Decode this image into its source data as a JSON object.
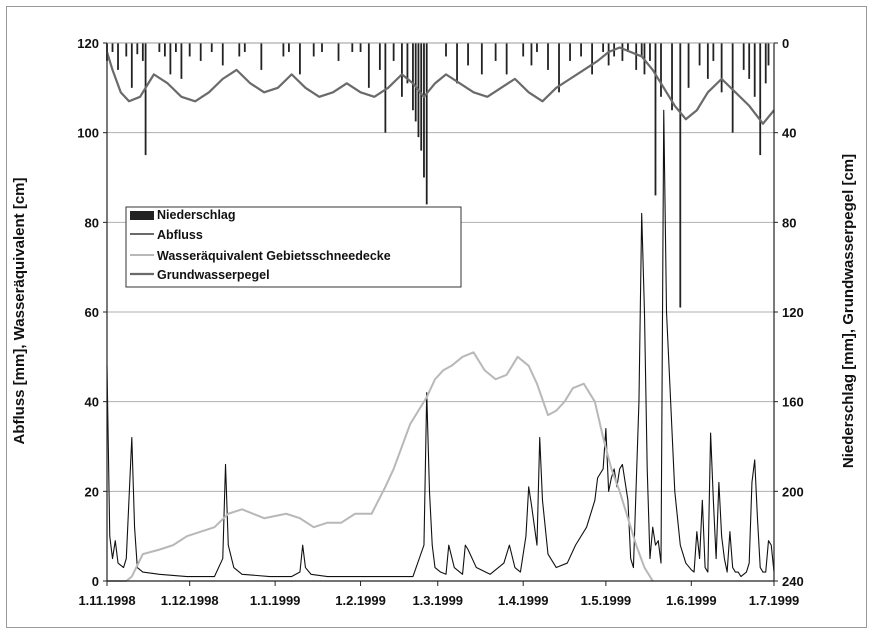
{
  "chart_data": {
    "type": "line",
    "xlabel": "",
    "ylabel_left": "Abfluss [mm], Wasseräquivalent [cm]",
    "ylabel_right": "Niederschlag [mm], Grundwasserpegel [cm]",
    "x_ticks": [
      "1.11.1998",
      "1.12.1998",
      "1.1.1999",
      "1.2.1999",
      "1.3.1999",
      "1.4.1999",
      "1.5.1999",
      "1.6.1999",
      "1.7.1999"
    ],
    "x_start": "1998-11-01",
    "x_end": "1999-07-01",
    "ylim_left": [
      0,
      120
    ],
    "yticks_left": [
      "0",
      "20",
      "40",
      "60",
      "80",
      "100",
      "120"
    ],
    "ylim_right": [
      0,
      240
    ],
    "right_axis_inverted": true,
    "yticks_right": [
      "0",
      "40",
      "80",
      "120",
      "160",
      "200",
      "240"
    ],
    "grid": "horizontal",
    "legend_placement": "upper-left",
    "legend": [
      {
        "label": "Niederschlag",
        "style": "bar",
        "color": "#222222"
      },
      {
        "label": "Abfluss",
        "style": "line",
        "color": "#111111"
      },
      {
        "label": "Wasseräquivalent Gebietsschneedecke",
        "style": "line",
        "color": "#b8b8b8"
      },
      {
        "label": "Grundwasserpegel",
        "style": "line",
        "color": "#6a6a6a"
      }
    ],
    "series": [
      {
        "name": "Niederschlag",
        "axis": "right",
        "kind": "bar",
        "color": "#222222",
        "x": [
          "1998-11-01",
          "1998-11-03",
          "1998-11-05",
          "1998-11-08",
          "1998-11-10",
          "1998-11-12",
          "1998-11-14",
          "1998-11-15",
          "1998-11-20",
          "1998-11-22",
          "1998-11-24",
          "1998-11-26",
          "1998-11-28",
          "1998-12-01",
          "1998-12-05",
          "1998-12-09",
          "1998-12-13",
          "1998-12-19",
          "1998-12-21",
          "1998-12-27",
          "1999-01-04",
          "1999-01-06",
          "1999-01-10",
          "1999-01-15",
          "1999-01-18",
          "1999-01-24",
          "1999-01-29",
          "1999-02-01",
          "1999-02-04",
          "1999-02-08",
          "1999-02-10",
          "1999-02-13",
          "1999-02-16",
          "1999-02-18",
          "1999-02-20",
          "1999-02-21",
          "1999-02-22",
          "1999-02-23",
          "1999-02-24",
          "1999-02-25",
          "1999-03-04",
          "1999-03-08",
          "1999-03-12",
          "1999-03-17",
          "1999-03-22",
          "1999-03-26",
          "1999-04-01",
          "1999-04-04",
          "1999-04-06",
          "1999-04-10",
          "1999-04-14",
          "1999-04-18",
          "1999-04-22",
          "1999-04-26",
          "1999-04-30",
          "1999-05-02",
          "1999-05-04",
          "1999-05-07",
          "1999-05-09",
          "1999-05-12",
          "1999-05-14",
          "1999-05-15",
          "1999-05-17",
          "1999-05-19",
          "1999-05-21",
          "1999-05-25",
          "1999-05-28",
          "1999-05-31",
          "1999-06-04",
          "1999-06-07",
          "1999-06-09",
          "1999-06-12",
          "1999-06-16",
          "1999-06-20",
          "1999-06-22",
          "1999-06-24",
          "1999-06-26",
          "1999-06-28",
          "1999-06-29"
        ],
        "values": [
          8,
          4,
          12,
          6,
          20,
          5,
          8,
          50,
          4,
          6,
          14,
          4,
          16,
          6,
          8,
          4,
          10,
          6,
          4,
          12,
          6,
          4,
          14,
          6,
          4,
          8,
          4,
          4,
          20,
          12,
          40,
          8,
          24,
          18,
          30,
          35,
          42,
          48,
          60,
          72,
          6,
          18,
          10,
          14,
          8,
          14,
          6,
          10,
          4,
          12,
          22,
          8,
          6,
          14,
          4,
          10,
          6,
          8,
          4,
          12,
          6,
          14,
          8,
          68,
          24,
          30,
          118,
          20,
          10,
          16,
          8,
          22,
          40,
          12,
          16,
          24,
          50,
          18,
          10
        ]
      },
      {
        "name": "Abfluss",
        "axis": "left",
        "kind": "line",
        "color": "#111111",
        "x": [
          "1998-11-01",
          "1998-11-02",
          "1998-11-03",
          "1998-11-04",
          "1998-11-05",
          "1998-11-07",
          "1998-11-08",
          "1998-11-10",
          "1998-11-11",
          "1998-11-12",
          "1998-11-14",
          "1998-11-20",
          "1998-11-30",
          "1998-12-10",
          "1998-12-13",
          "1998-12-14",
          "1998-12-15",
          "1998-12-17",
          "1998-12-20",
          "1998-12-30",
          "1999-01-07",
          "1999-01-10",
          "1999-01-11",
          "1999-01-12",
          "1999-01-14",
          "1999-01-20",
          "1999-01-30",
          "1999-02-10",
          "1999-02-20",
          "1999-02-24",
          "1999-02-25",
          "1999-02-26",
          "1999-02-27",
          "1999-02-28",
          "1999-03-02",
          "1999-03-04",
          "1999-03-05",
          "1999-03-07",
          "1999-03-10",
          "1999-03-11",
          "1999-03-12",
          "1999-03-15",
          "1999-03-20",
          "1999-03-25",
          "1999-03-27",
          "1999-03-29",
          "1999-03-31",
          "1999-04-02",
          "1999-04-03",
          "1999-04-04",
          "1999-04-06",
          "1999-04-07",
          "1999-04-08",
          "1999-04-10",
          "1999-04-13",
          "1999-04-17",
          "1999-04-20",
          "1999-04-24",
          "1999-04-27",
          "1999-04-28",
          "1999-04-30",
          "1999-05-01",
          "1999-05-02",
          "1999-05-03",
          "1999-05-04",
          "1999-05-05",
          "1999-05-06",
          "1999-05-07",
          "1999-05-08",
          "1999-05-09",
          "1999-05-10",
          "1999-05-11",
          "1999-05-13",
          "1999-05-14",
          "1999-05-15",
          "1999-05-16",
          "1999-05-17",
          "1999-05-18",
          "1999-05-19",
          "1999-05-20",
          "1999-05-21",
          "1999-05-22",
          "1999-05-23",
          "1999-05-26",
          "1999-05-28",
          "1999-05-30",
          "1999-06-01",
          "1999-06-02",
          "1999-06-03",
          "1999-06-04",
          "1999-06-05",
          "1999-06-06",
          "1999-06-07",
          "1999-06-08",
          "1999-06-09",
          "1999-06-10",
          "1999-06-11",
          "1999-06-12",
          "1999-06-13",
          "1999-06-14",
          "1999-06-15",
          "1999-06-16",
          "1999-06-17",
          "1999-06-18",
          "1999-06-19",
          "1999-06-20",
          "1999-06-21",
          "1999-06-22",
          "1999-06-23",
          "1999-06-24",
          "1999-06-25",
          "1999-06-26",
          "1999-06-27",
          "1999-06-28",
          "1999-06-29",
          "1999-06-30",
          "1999-07-01"
        ],
        "values": [
          48,
          10,
          5,
          9,
          4,
          3,
          5,
          32,
          12,
          3,
          2,
          1.5,
          1,
          1,
          5,
          26,
          8,
          3,
          1.5,
          1,
          1,
          2,
          8,
          3,
          1.5,
          1,
          1,
          1,
          1,
          8,
          42,
          20,
          8,
          3,
          2,
          1.5,
          8,
          3,
          1.5,
          8,
          7,
          3,
          1.5,
          4,
          8,
          3,
          2,
          10,
          21,
          17,
          8,
          32,
          18,
          6,
          3,
          4,
          8,
          12,
          18,
          23,
          25,
          34,
          20,
          23,
          25,
          21,
          25,
          26,
          22,
          18,
          5,
          3,
          40,
          82,
          60,
          25,
          5,
          12,
          8,
          9,
          4,
          105,
          60,
          20,
          8,
          4,
          2.5,
          2,
          11,
          5,
          18,
          3,
          2,
          33,
          18,
          5,
          22,
          10,
          5,
          2,
          11,
          3,
          2,
          2,
          1,
          1.5,
          2,
          4,
          22,
          27,
          14,
          3,
          2,
          2,
          9,
          8,
          2
        ]
      },
      {
        "name": "Wasseräquivalent Gebietsschneedecke",
        "axis": "left",
        "kind": "line",
        "color": "#b8b8b8",
        "x": [
          "1998-11-01",
          "1998-11-08",
          "1998-11-10",
          "1998-11-14",
          "1998-11-20",
          "1998-11-25",
          "1998-11-30",
          "1998-12-05",
          "1998-12-10",
          "1998-12-15",
          "1998-12-20",
          "1998-12-28",
          "1999-01-05",
          "1999-01-10",
          "1999-01-15",
          "1999-01-20",
          "1999-01-25",
          "1999-01-30",
          "1999-02-05",
          "1999-02-10",
          "1999-02-13",
          "1999-02-16",
          "1999-02-19",
          "1999-02-22",
          "1999-02-25",
          "1999-02-28",
          "1999-03-03",
          "1999-03-06",
          "1999-03-10",
          "1999-03-14",
          "1999-03-18",
          "1999-03-22",
          "1999-03-26",
          "1999-03-30",
          "1999-04-03",
          "1999-04-06",
          "1999-04-10",
          "1999-04-13",
          "1999-04-16",
          "1999-04-19",
          "1999-04-23",
          "1999-04-27",
          "1999-04-30",
          "1999-05-03",
          "1999-05-06",
          "1999-05-09",
          "1999-05-12",
          "1999-05-15",
          "1999-05-18"
        ],
        "values": [
          0,
          0,
          1,
          6,
          7,
          8,
          10,
          11,
          12,
          15,
          16,
          14,
          15,
          14,
          12,
          13,
          13,
          15,
          15,
          21,
          25,
          30,
          35,
          38,
          41,
          45,
          47,
          48,
          50,
          51,
          47,
          45,
          46,
          50,
          48,
          44,
          37,
          38,
          40,
          43,
          44,
          40,
          32,
          25,
          20,
          14,
          8,
          3,
          0
        ]
      },
      {
        "name": "Grundwasserpegel",
        "axis": "right",
        "kind": "line",
        "color": "#6a6a6a",
        "x": [
          "1998-11-01",
          "1998-11-03",
          "1998-11-06",
          "1998-11-09",
          "1998-11-13",
          "1998-11-18",
          "1998-11-23",
          "1998-11-28",
          "1998-12-03",
          "1998-12-08",
          "1998-12-13",
          "1998-12-18",
          "1998-12-23",
          "1998-12-28",
          "1999-01-02",
          "1999-01-07",
          "1999-01-12",
          "1999-01-17",
          "1999-01-22",
          "1999-01-27",
          "1999-02-01",
          "1999-02-06",
          "1999-02-11",
          "1999-02-16",
          "1999-02-20",
          "1999-02-24",
          "1999-02-28",
          "1999-03-04",
          "1999-03-09",
          "1999-03-14",
          "1999-03-19",
          "1999-03-24",
          "1999-03-29",
          "1999-04-03",
          "1999-04-08",
          "1999-04-13",
          "1999-04-18",
          "1999-04-23",
          "1999-04-28",
          "1999-05-02",
          "1999-05-06",
          "1999-05-10",
          "1999-05-14",
          "1999-05-18",
          "1999-05-22",
          "1999-05-26",
          "1999-05-30",
          "1999-06-03",
          "1999-06-07",
          "1999-06-12",
          "1999-06-17",
          "1999-06-22",
          "1999-06-27",
          "1999-07-01"
        ],
        "values": [
          4,
          12,
          22,
          26,
          24,
          14,
          18,
          24,
          26,
          22,
          16,
          12,
          18,
          22,
          20,
          14,
          20,
          24,
          22,
          18,
          22,
          24,
          20,
          14,
          18,
          24,
          18,
          14,
          18,
          22,
          24,
          20,
          16,
          22,
          26,
          20,
          16,
          12,
          8,
          4,
          2,
          4,
          6,
          12,
          20,
          28,
          34,
          30,
          22,
          16,
          22,
          28,
          36,
          30
        ]
      }
    ]
  }
}
